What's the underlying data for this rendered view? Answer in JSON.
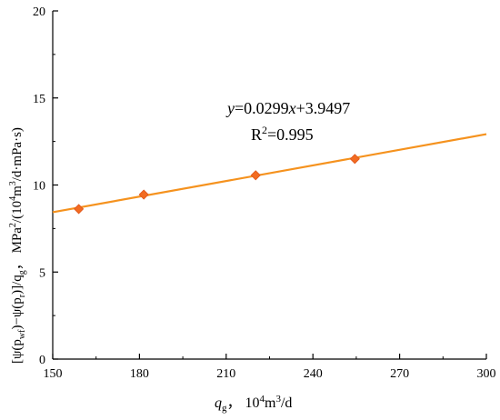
{
  "chart_data": {
    "type": "scatter",
    "xlim": [
      150,
      300
    ],
    "ylim": [
      0,
      20
    ],
    "x_ticks": [
      150,
      180,
      210,
      240,
      270,
      300
    ],
    "y_ticks": [
      0,
      5,
      10,
      15,
      20
    ],
    "xlabel": {
      "var": "q",
      "var_sub": "g",
      "unit_pre": "，  10",
      "unit_sup": "4",
      "unit_mid": "m",
      "unit_sup2": "3",
      "unit_post": "/d"
    },
    "ylabel": {
      "p1": "[ψ(p",
      "s1": "wf",
      "p2": ")−ψ(p",
      "s2": "r",
      "p3": ")]/q",
      "s3": "g",
      "p4": "，  MPa",
      "sup1": "2",
      "p5": "/(10",
      "sup2": "4",
      "p6": "m",
      "sup3": "3",
      "p7": "/d·mPa·s)"
    },
    "points": [
      {
        "x": 159.0,
        "y": 8.62
      },
      {
        "x": 181.5,
        "y": 9.45
      },
      {
        "x": 220.2,
        "y": 10.56
      },
      {
        "x": 254.5,
        "y": 11.5
      }
    ],
    "fit": {
      "slope": 0.0299,
      "intercept": 3.9497
    },
    "annotation": {
      "eq_var_y": "y",
      "eq_mid": "=0.0299",
      "eq_var_x": "x",
      "eq_end": "+3.9497",
      "r2_pre": "R",
      "r2_sup": "2",
      "r2_post": "=0.995"
    },
    "colors": {
      "line": "#f5921e",
      "marker": "#f26b21",
      "axis": "#000000"
    },
    "grid": false
  }
}
